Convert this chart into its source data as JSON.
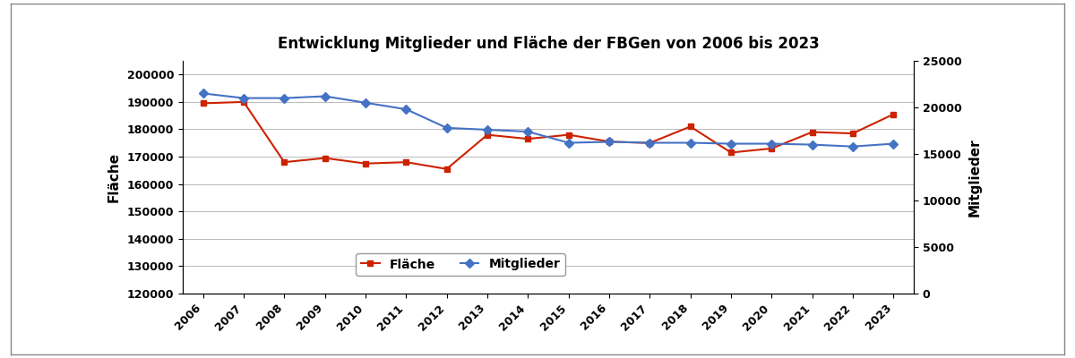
{
  "years": [
    2006,
    2007,
    2008,
    2009,
    2010,
    2011,
    2012,
    2013,
    2014,
    2015,
    2016,
    2017,
    2018,
    2019,
    2020,
    2021,
    2022,
    2023
  ],
  "flaeche": [
    189500,
    190000,
    168000,
    169500,
    167500,
    168000,
    165500,
    178000,
    176500,
    178000,
    175500,
    175000,
    181000,
    171500,
    173000,
    179000,
    178500,
    185500
  ],
  "mitglieder": [
    21500,
    21000,
    21000,
    21200,
    20500,
    19800,
    17800,
    17600,
    17400,
    16200,
    16300,
    16200,
    16200,
    16100,
    16100,
    16000,
    15800,
    16100
  ],
  "title": "Entwicklung Mitglieder und Fläche der FBGen von 2006 bis 2023",
  "ylabel_left": "Fläche",
  "ylabel_right": "Mitglieder",
  "ylim_left": [
    120000,
    205000
  ],
  "ylim_right": [
    0,
    25000
  ],
  "yticks_left": [
    120000,
    130000,
    140000,
    150000,
    160000,
    170000,
    180000,
    190000,
    200000
  ],
  "yticks_right": [
    0,
    5000,
    10000,
    15000,
    20000,
    25000
  ],
  "line_color_flaeche": "#CC2200",
  "line_color_mitglieder": "#4472C4",
  "marker_flaeche": "s",
  "marker_mitglieder": "D",
  "legend_label_flaeche": "Fläche",
  "legend_label_mitglieder": "Mitglieder",
  "background_color": "#FFFFFF",
  "grid_color": "#BBBBBB",
  "outer_border_color": "#AAAAAA",
  "tick_fontsize": 9,
  "label_fontsize": 11,
  "title_fontsize": 12
}
